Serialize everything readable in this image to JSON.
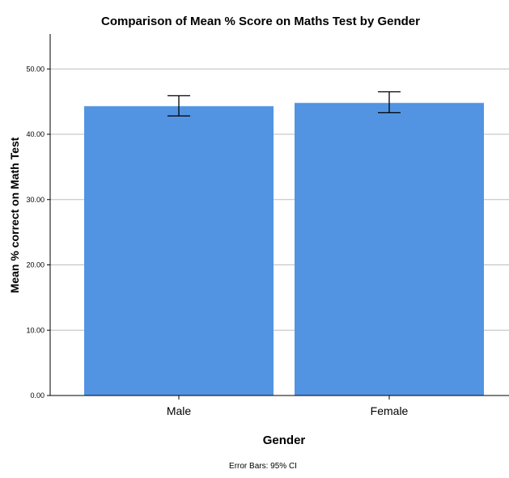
{
  "chart_data": {
    "type": "bar",
    "title": "Comparison of Mean % Score on Maths Test by Gender",
    "xlabel": "Gender",
    "ylabel": "Mean % correct on Math Test",
    "categories": [
      "Male",
      "Female"
    ],
    "values": [
      44.3,
      44.8
    ],
    "error_bars": {
      "lower": [
        42.8,
        43.3
      ],
      "upper": [
        45.9,
        46.5
      ]
    },
    "ylim": [
      0,
      55
    ],
    "yticks": [
      "0.00",
      "10.00",
      "20.00",
      "30.00",
      "40.00",
      "50.00"
    ],
    "ytick_values": [
      0,
      10,
      20,
      30,
      40,
      50
    ],
    "grid": true,
    "legend": "none",
    "footnote": "Error Bars: 95% CI",
    "bar_color": "#5294E2",
    "grid_color": "#BDBDBD",
    "axis_color": "#000000",
    "error_bar_color": "#000000"
  }
}
